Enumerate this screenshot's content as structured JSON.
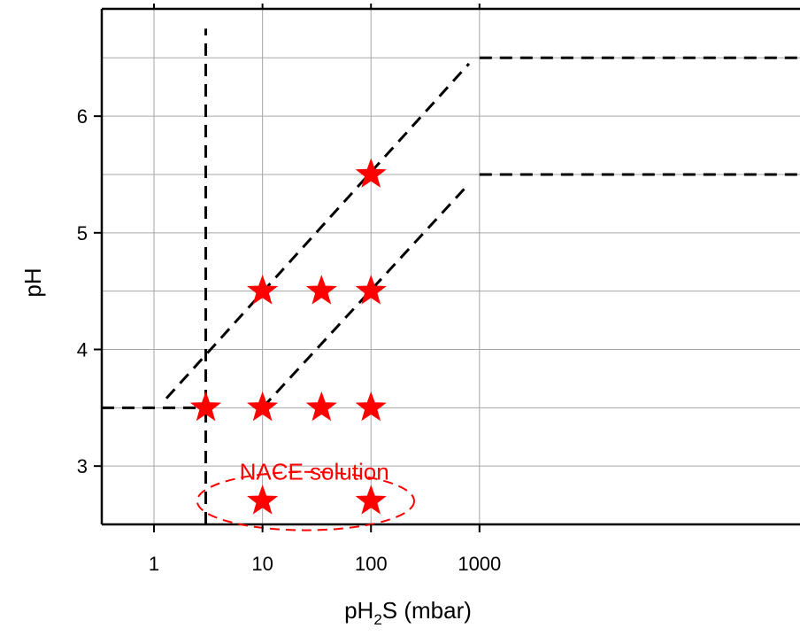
{
  "chart_data": {
    "type": "scatter",
    "title": "",
    "xlabel": {
      "main": "pH",
      "subscript": "2",
      "rest": "S (mbar)"
    },
    "ylabel": "pH",
    "xscale": "log",
    "xlim": [
      0.33,
      900000
    ],
    "ylim": [
      2.5,
      6.92
    ],
    "x_ticks": [
      1,
      10,
      100,
      1000
    ],
    "x_tick_labels": [
      "1",
      "10",
      "100",
      "1000"
    ],
    "y_ticks": [
      3,
      4,
      5,
      6
    ],
    "y_tick_labels": [
      "3",
      "4",
      "5",
      "6"
    ],
    "y_gridlines": [
      3,
      3.5,
      4,
      4.5,
      5,
      5.5,
      6,
      6.5
    ],
    "grid": true,
    "marker_color": "#ff0000",
    "line_color": "#000000",
    "series": [
      {
        "marker": "star",
        "points": [
          {
            "x": 3,
            "y": 3.5
          },
          {
            "x": 10,
            "y": 3.5
          },
          {
            "x": 35,
            "y": 3.5
          },
          {
            "x": 100,
            "y": 3.5
          },
          {
            "x": 10,
            "y": 4.5
          },
          {
            "x": 35,
            "y": 4.5
          },
          {
            "x": 100,
            "y": 4.5
          },
          {
            "x": 100,
            "y": 5.5
          },
          {
            "x": 10,
            "y": 2.7
          },
          {
            "x": 100,
            "y": 2.7
          }
        ]
      }
    ],
    "boundary_lines": [
      {
        "style": "dashed",
        "points": [
          [
            0.33,
            3.5
          ],
          [
            3,
            3.5
          ]
        ]
      },
      {
        "style": "dashed",
        "points": [
          [
            3,
            2.5
          ],
          [
            3,
            6.75
          ]
        ]
      },
      {
        "style": "dashed",
        "points": [
          [
            1.3,
            3.58
          ],
          [
            800,
            6.45
          ]
        ]
      },
      {
        "style": "dashed",
        "points": [
          [
            10,
            3.5
          ],
          [
            800,
            5.42
          ]
        ]
      },
      {
        "style": "dashed",
        "points": [
          [
            1000,
            6.5
          ],
          [
            900000,
            6.5
          ]
        ]
      },
      {
        "style": "dashed",
        "points": [
          [
            1000,
            5.5
          ],
          [
            900000,
            5.5
          ]
        ]
      }
    ],
    "annotation": {
      "text": "NACE solution",
      "color": "#ff0000",
      "x": 30,
      "y": 2.95,
      "ellipse": {
        "cx": 25,
        "cy": 2.7,
        "rx_decades": 1.0,
        "ry": 0.25
      }
    }
  }
}
